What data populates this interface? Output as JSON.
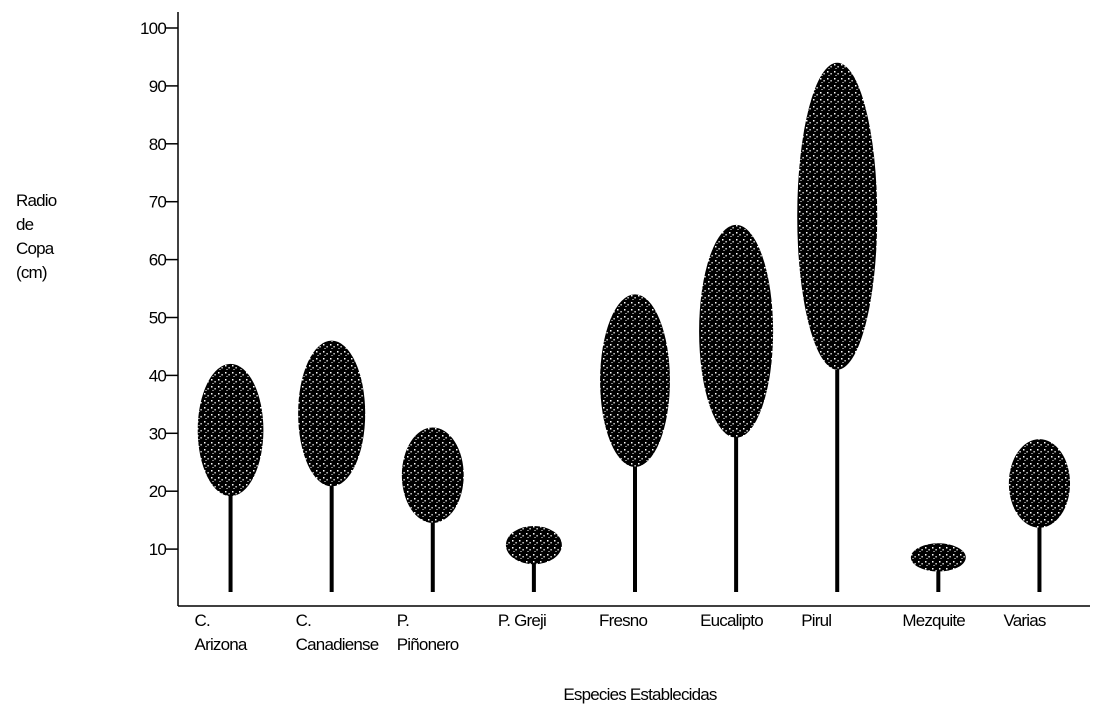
{
  "chart_data": {
    "type": "pictogram",
    "y_label_lines": [
      "Radio",
      "de",
      "Copa",
      "(cm)"
    ],
    "x_label": "Especies Establecidas",
    "categories": [
      "C.\nArizona",
      "C.\nCanadiense",
      "P.\nPiñonero",
      "P. Greji",
      "Fresno",
      "Eucalipto",
      "Pirul",
      "Mezquite",
      "Varias"
    ],
    "values": [
      42,
      46,
      31,
      14,
      54,
      66,
      94,
      11,
      29
    ],
    "color": "#000000",
    "ylim": [
      0,
      100
    ],
    "yticks": [
      10,
      20,
      30,
      40,
      50,
      60,
      70,
      80,
      90,
      100
    ]
  }
}
